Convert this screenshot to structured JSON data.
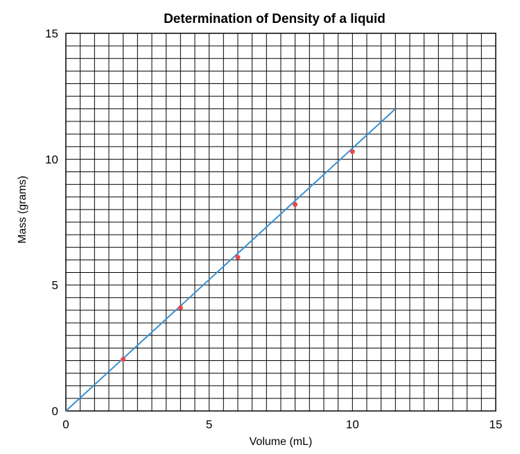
{
  "chart_data": {
    "type": "scatter",
    "title": "Determination of Density of a liquid",
    "xlabel": "Volume (mL)",
    "ylabel": "Mass (grams)",
    "xlim": [
      0,
      15
    ],
    "ylim": [
      0,
      15
    ],
    "xticks": [
      "0",
      "5",
      "10",
      "15"
    ],
    "yticks": [
      "0",
      "5",
      "10",
      "15"
    ],
    "grid": true,
    "grid_step": 0.5,
    "series": [
      {
        "kind": "points",
        "x": [
          2,
          4,
          6,
          8,
          10
        ],
        "y": [
          2.05,
          4.1,
          6.1,
          8.2,
          10.3
        ],
        "color": "#e8474d"
      },
      {
        "kind": "line",
        "x": [
          0,
          11.5
        ],
        "y": [
          0,
          12.0
        ],
        "color": "#3a8fd0"
      }
    ]
  }
}
